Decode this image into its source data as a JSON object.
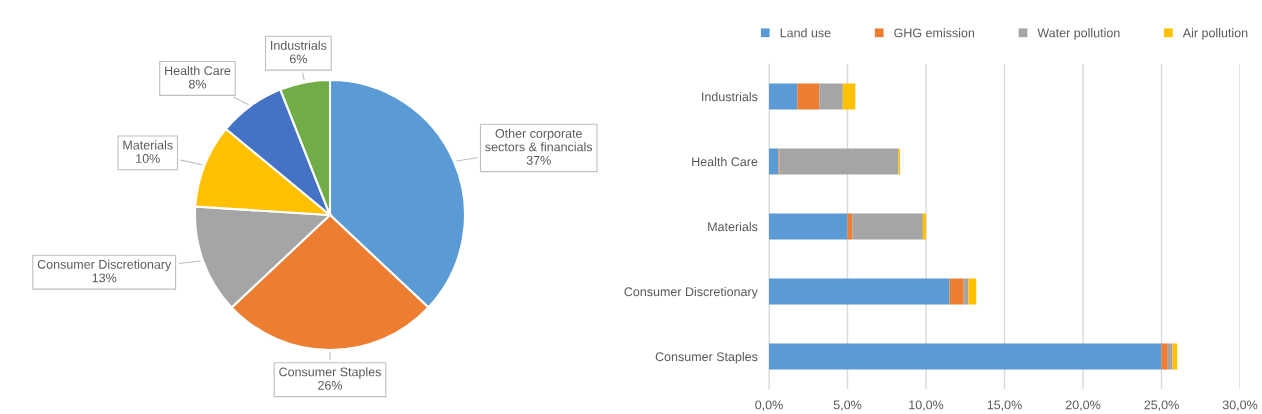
{
  "chart_data": [
    {
      "type": "pie",
      "categories": [
        "Other corporate sectors & financials",
        "Consumer Staples",
        "Consumer Discretionary",
        "Materials",
        "Health Care",
        "Industrials"
      ],
      "values": [
        37,
        26,
        13,
        10,
        8,
        6
      ],
      "value_labels": [
        "37%",
        "26%",
        "13%",
        "10%",
        "8%",
        "6%"
      ],
      "colors": [
        "#5b9bd5",
        "#ed7d31",
        "#a5a5a5",
        "#ffc000",
        "#4472c4",
        "#70ad47"
      ]
    },
    {
      "type": "bar",
      "orientation": "horizontal",
      "stacked": true,
      "categories": [
        "Industrials",
        "Health Care",
        "Materials",
        "Consumer Discretionary",
        "Consumer Staples"
      ],
      "series": [
        {
          "name": "Land use",
          "color": "#5b9bd5",
          "values": [
            1.8,
            0.6,
            5.0,
            11.5,
            25.0
          ]
        },
        {
          "name": "GHG emission",
          "color": "#ed7d31",
          "values": [
            1.4,
            0.05,
            0.3,
            0.9,
            0.4
          ]
        },
        {
          "name": "Water pollution",
          "color": "#a5a5a5",
          "values": [
            1.5,
            7.6,
            4.5,
            0.3,
            0.3
          ]
        },
        {
          "name": "Air pollution",
          "color": "#ffc000",
          "values": [
            0.8,
            0.1,
            0.2,
            0.5,
            0.3
          ]
        }
      ],
      "xlim": [
        0,
        30
      ],
      "xticks": [
        {
          "value": 0,
          "label": "0,0%"
        },
        {
          "value": 5,
          "label": "5,0%"
        },
        {
          "value": 10,
          "label": "10,0%"
        },
        {
          "value": 15,
          "label": "15,0%"
        },
        {
          "value": 20,
          "label": "20,0%"
        },
        {
          "value": 25,
          "label": "25,0%"
        },
        {
          "value": 30,
          "label": "30,0%"
        }
      ],
      "grid": "x",
      "legend": "top"
    }
  ]
}
